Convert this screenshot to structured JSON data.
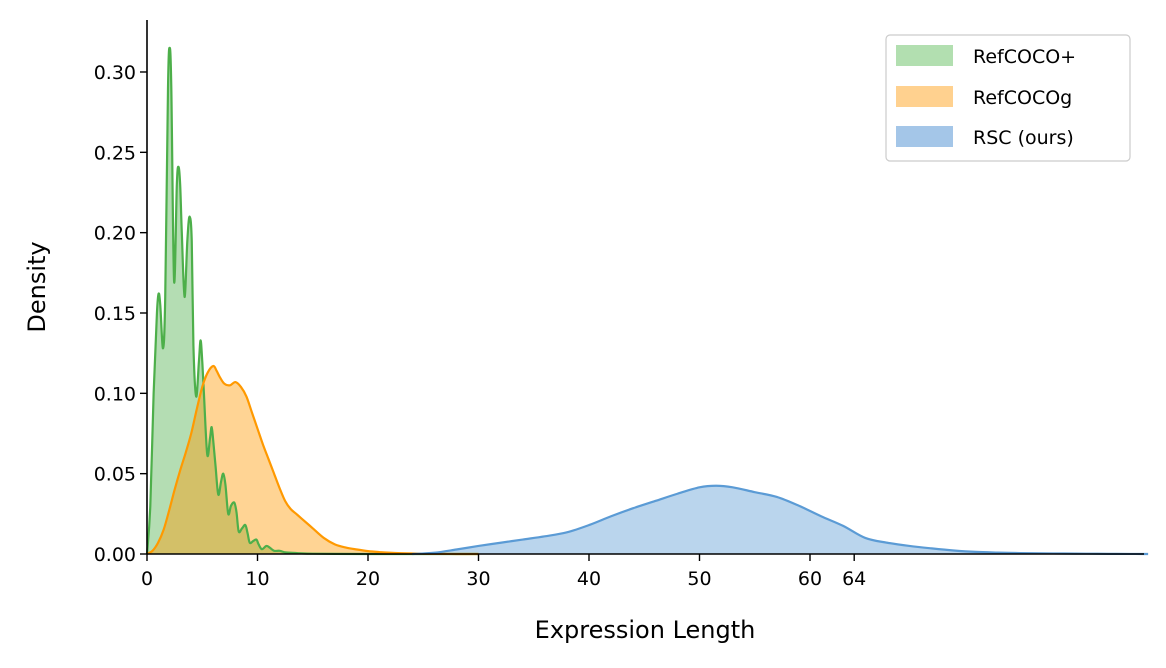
{
  "chart_data": {
    "type": "area",
    "title": "",
    "xlabel": "Expression Length",
    "ylabel": "Density",
    "xlim": [
      0,
      90.6
    ],
    "ylim": [
      0,
      0.33
    ],
    "grid": false,
    "legend_position": "upper right",
    "x_ticks": [
      0,
      10,
      20,
      30,
      40,
      50,
      60,
      64
    ],
    "x_tick_labels": [
      "0",
      "10",
      "20",
      "30",
      "40",
      "50",
      "60",
      "64"
    ],
    "y_ticks": [
      0.0,
      0.05,
      0.1,
      0.15,
      0.2,
      0.25,
      0.3
    ],
    "y_tick_labels": [
      "0.00",
      "0.05",
      "0.10",
      "0.15",
      "0.20",
      "0.25",
      "0.30"
    ],
    "series": [
      {
        "name": "RefCOCO+",
        "line_color": "#4daf4a",
        "fill_color": "#b2dfb0",
        "x": [
          0,
          0.3,
          0.6,
          0.9,
          1.05,
          1.2,
          1.45,
          1.65,
          1.9,
          2.05,
          2.2,
          2.45,
          2.7,
          2.85,
          3.0,
          3.15,
          3.4,
          3.65,
          3.85,
          4.05,
          4.2,
          4.45,
          4.7,
          4.85,
          5.0,
          5.15,
          5.45,
          5.7,
          5.85,
          6.0,
          6.2,
          6.45,
          6.7,
          6.9,
          7.1,
          7.35,
          7.6,
          7.9,
          8.1,
          8.3,
          8.6,
          8.9,
          9.1,
          9.3,
          9.6,
          9.9,
          10.1,
          10.4,
          10.8,
          11.1,
          11.5,
          12,
          12.5,
          13,
          14,
          15,
          17,
          20,
          25,
          30
        ],
        "y": [
          0.0,
          0.03,
          0.1,
          0.15,
          0.162,
          0.155,
          0.128,
          0.16,
          0.29,
          0.315,
          0.29,
          0.17,
          0.23,
          0.241,
          0.23,
          0.2,
          0.16,
          0.195,
          0.21,
          0.195,
          0.13,
          0.098,
          0.12,
          0.133,
          0.12,
          0.1,
          0.062,
          0.072,
          0.079,
          0.07,
          0.055,
          0.037,
          0.045,
          0.05,
          0.043,
          0.025,
          0.03,
          0.032,
          0.026,
          0.014,
          0.016,
          0.018,
          0.013,
          0.007,
          0.008,
          0.009,
          0.006,
          0.003,
          0.005,
          0.004,
          0.002,
          0.002,
          0.001,
          0.0008,
          0.0004,
          0.0002,
          0.0001,
          0.0,
          0.0,
          0.0
        ]
      },
      {
        "name": "RefCOCOg",
        "line_color": "#ff9900",
        "fill_color": "#ffd18f",
        "x": [
          0,
          0.5,
          1,
          1.5,
          2,
          2.5,
          3,
          3.5,
          4,
          4.5,
          5,
          5.5,
          6,
          6.3,
          6.6,
          7,
          7.5,
          8,
          8.5,
          9,
          9.5,
          10,
          10.5,
          11,
          11.5,
          12,
          12.5,
          13,
          13.5,
          14,
          15,
          16,
          17,
          18,
          19,
          20,
          21,
          22,
          23,
          24,
          25,
          26,
          28,
          30
        ],
        "y": [
          0.0,
          0.002,
          0.007,
          0.015,
          0.027,
          0.04,
          0.052,
          0.063,
          0.075,
          0.09,
          0.104,
          0.113,
          0.117,
          0.114,
          0.11,
          0.106,
          0.105,
          0.107,
          0.104,
          0.098,
          0.088,
          0.078,
          0.068,
          0.059,
          0.05,
          0.041,
          0.033,
          0.028,
          0.025,
          0.022,
          0.016,
          0.01,
          0.006,
          0.004,
          0.0028,
          0.0018,
          0.0012,
          0.0008,
          0.0005,
          0.0003,
          0.0002,
          0.0001,
          0.0,
          0.0
        ]
      },
      {
        "name": "RSC (ours)",
        "line_color": "#5b9bd5",
        "fill_color": "#a4c6e8",
        "x": [
          24,
          26,
          28,
          30,
          32,
          34,
          36,
          38,
          40,
          42,
          44,
          46,
          48,
          50,
          51.5,
          53,
          55,
          57,
          59,
          61,
          63,
          65,
          67,
          69,
          71,
          73,
          75,
          77,
          79,
          81,
          83,
          85,
          87,
          89,
          90.6
        ],
        "y": [
          0.0,
          0.0008,
          0.0028,
          0.005,
          0.007,
          0.009,
          0.011,
          0.0135,
          0.018,
          0.0235,
          0.0285,
          0.033,
          0.0375,
          0.0415,
          0.0425,
          0.0415,
          0.0385,
          0.0355,
          0.03,
          0.0235,
          0.0175,
          0.01,
          0.007,
          0.005,
          0.0035,
          0.0022,
          0.0013,
          0.0009,
          0.0006,
          0.0004,
          0.0003,
          0.0002,
          0.0001,
          5e-05,
          0.0
        ]
      }
    ]
  },
  "legend": {
    "items": [
      {
        "label": "RefCOCO+",
        "color": "#b2dfb0"
      },
      {
        "label": "RefCOCOg",
        "color": "#ffd18f"
      },
      {
        "label": "RSC (ours)",
        "color": "#a4c6e8"
      }
    ]
  }
}
